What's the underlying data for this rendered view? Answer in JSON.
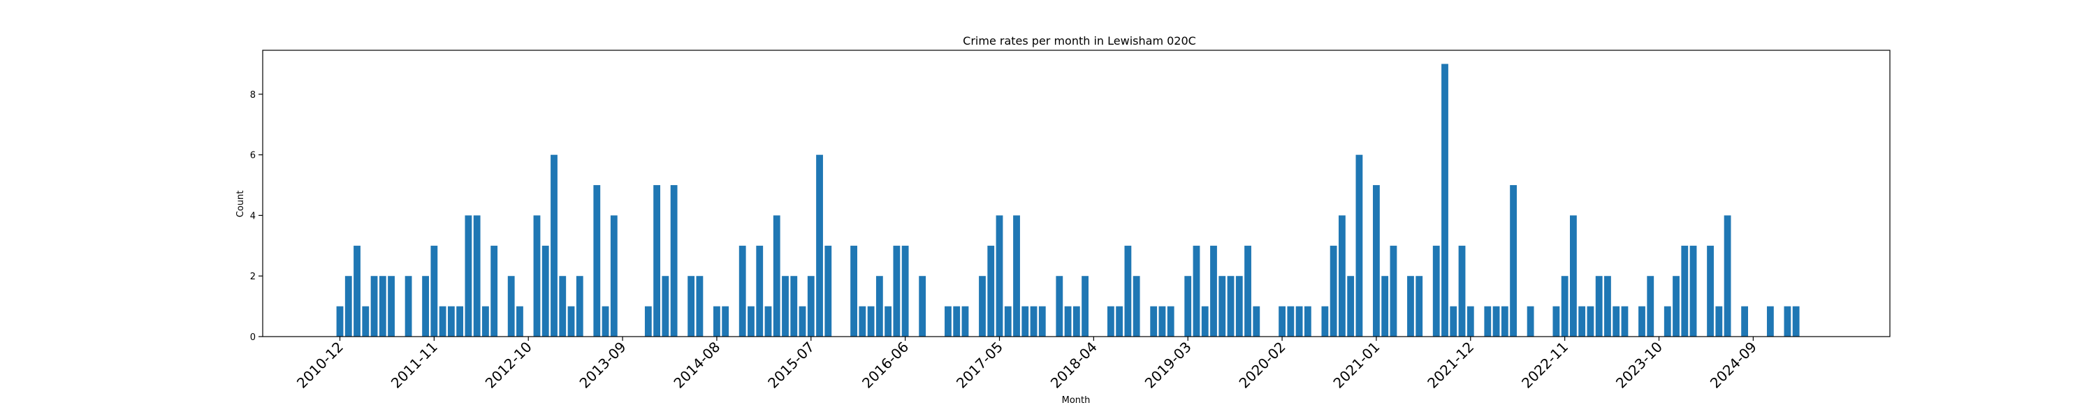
{
  "chart_data": {
    "type": "bar",
    "title": "Crime rates per month in Lewisham 020C",
    "xlabel": "Month",
    "ylabel": "Count",
    "ylim": [
      0,
      9.45
    ],
    "yticks": [
      0,
      2,
      4,
      6,
      8
    ],
    "x_start": "2010-12",
    "x_end": "2024-12",
    "xticks": [
      "2010-12",
      "2011-11",
      "2012-10",
      "2013-09",
      "2014-08",
      "2015-07",
      "2016-06",
      "2017-05",
      "2018-04",
      "2019-03",
      "2020-02",
      "2021-01",
      "2021-12",
      "2022-11",
      "2023-10",
      "2024-09"
    ],
    "grid": false,
    "series": [
      {
        "bars": [
          {
            "x": "2010-12",
            "y": 1
          },
          {
            "x": "2011-01",
            "y": 2
          },
          {
            "x": "2011-02",
            "y": 3
          },
          {
            "x": "2011-03",
            "y": 1
          },
          {
            "x": "2011-04",
            "y": 2
          },
          {
            "x": "2011-05",
            "y": 2
          },
          {
            "x": "2011-06",
            "y": 2
          },
          {
            "x": "2011-08",
            "y": 2
          },
          {
            "x": "2011-10",
            "y": 2
          },
          {
            "x": "2011-11",
            "y": 3
          },
          {
            "x": "2011-12",
            "y": 1
          },
          {
            "x": "2012-01",
            "y": 1
          },
          {
            "x": "2012-02",
            "y": 1
          },
          {
            "x": "2012-03",
            "y": 4
          },
          {
            "x": "2012-04",
            "y": 4
          },
          {
            "x": "2012-05",
            "y": 1
          },
          {
            "x": "2012-06",
            "y": 3
          },
          {
            "x": "2012-08",
            "y": 2
          },
          {
            "x": "2012-09",
            "y": 1
          },
          {
            "x": "2012-11",
            "y": 4
          },
          {
            "x": "2012-12",
            "y": 3
          },
          {
            "x": "2013-01",
            "y": 6
          },
          {
            "x": "2013-02",
            "y": 2
          },
          {
            "x": "2013-03",
            "y": 1
          },
          {
            "x": "2013-04",
            "y": 2
          },
          {
            "x": "2013-06",
            "y": 5
          },
          {
            "x": "2013-07",
            "y": 1
          },
          {
            "x": "2013-08",
            "y": 4
          },
          {
            "x": "2013-12",
            "y": 1
          },
          {
            "x": "2014-01",
            "y": 5
          },
          {
            "x": "2014-02",
            "y": 2
          },
          {
            "x": "2014-03",
            "y": 5
          },
          {
            "x": "2014-05",
            "y": 2
          },
          {
            "x": "2014-06",
            "y": 2
          },
          {
            "x": "2014-08",
            "y": 1
          },
          {
            "x": "2014-09",
            "y": 1
          },
          {
            "x": "2014-11",
            "y": 3
          },
          {
            "x": "2014-12",
            "y": 1
          },
          {
            "x": "2015-01",
            "y": 3
          },
          {
            "x": "2015-02",
            "y": 1
          },
          {
            "x": "2015-03",
            "y": 4
          },
          {
            "x": "2015-04",
            "y": 2
          },
          {
            "x": "2015-05",
            "y": 2
          },
          {
            "x": "2015-06",
            "y": 1
          },
          {
            "x": "2015-07",
            "y": 2
          },
          {
            "x": "2015-08",
            "y": 6
          },
          {
            "x": "2015-09",
            "y": 3
          },
          {
            "x": "2015-12",
            "y": 3
          },
          {
            "x": "2016-01",
            "y": 1
          },
          {
            "x": "2016-02",
            "y": 1
          },
          {
            "x": "2016-03",
            "y": 2
          },
          {
            "x": "2016-04",
            "y": 1
          },
          {
            "x": "2016-05",
            "y": 3
          },
          {
            "x": "2016-06",
            "y": 3
          },
          {
            "x": "2016-08",
            "y": 2
          },
          {
            "x": "2016-11",
            "y": 1
          },
          {
            "x": "2016-12",
            "y": 1
          },
          {
            "x": "2017-01",
            "y": 1
          },
          {
            "x": "2017-03",
            "y": 2
          },
          {
            "x": "2017-04",
            "y": 3
          },
          {
            "x": "2017-05",
            "y": 4
          },
          {
            "x": "2017-06",
            "y": 1
          },
          {
            "x": "2017-07",
            "y": 4
          },
          {
            "x": "2017-08",
            "y": 1
          },
          {
            "x": "2017-09",
            "y": 1
          },
          {
            "x": "2017-10",
            "y": 1
          },
          {
            "x": "2017-12",
            "y": 2
          },
          {
            "x": "2018-01",
            "y": 1
          },
          {
            "x": "2018-02",
            "y": 1
          },
          {
            "x": "2018-03",
            "y": 2
          },
          {
            "x": "2018-06",
            "y": 1
          },
          {
            "x": "2018-07",
            "y": 1
          },
          {
            "x": "2018-08",
            "y": 3
          },
          {
            "x": "2018-09",
            "y": 2
          },
          {
            "x": "2018-11",
            "y": 1
          },
          {
            "x": "2018-12",
            "y": 1
          },
          {
            "x": "2019-01",
            "y": 1
          },
          {
            "x": "2019-03",
            "y": 2
          },
          {
            "x": "2019-04",
            "y": 3
          },
          {
            "x": "2019-05",
            "y": 1
          },
          {
            "x": "2019-06",
            "y": 3
          },
          {
            "x": "2019-07",
            "y": 2
          },
          {
            "x": "2019-08",
            "y": 2
          },
          {
            "x": "2019-09",
            "y": 2
          },
          {
            "x": "2019-10",
            "y": 3
          },
          {
            "x": "2019-11",
            "y": 1
          },
          {
            "x": "2020-02",
            "y": 1
          },
          {
            "x": "2020-03",
            "y": 1
          },
          {
            "x": "2020-04",
            "y": 1
          },
          {
            "x": "2020-05",
            "y": 1
          },
          {
            "x": "2020-07",
            "y": 1
          },
          {
            "x": "2020-08",
            "y": 3
          },
          {
            "x": "2020-09",
            "y": 4
          },
          {
            "x": "2020-10",
            "y": 2
          },
          {
            "x": "2020-11",
            "y": 6
          },
          {
            "x": "2021-01",
            "y": 5
          },
          {
            "x": "2021-02",
            "y": 2
          },
          {
            "x": "2021-03",
            "y": 3
          },
          {
            "x": "2021-05",
            "y": 2
          },
          {
            "x": "2021-06",
            "y": 2
          },
          {
            "x": "2021-08",
            "y": 3
          },
          {
            "x": "2021-09",
            "y": 9
          },
          {
            "x": "2021-10",
            "y": 1
          },
          {
            "x": "2021-11",
            "y": 3
          },
          {
            "x": "2021-12",
            "y": 1
          },
          {
            "x": "2022-02",
            "y": 1
          },
          {
            "x": "2022-03",
            "y": 1
          },
          {
            "x": "2022-04",
            "y": 1
          },
          {
            "x": "2022-05",
            "y": 5
          },
          {
            "x": "2022-07",
            "y": 1
          },
          {
            "x": "2022-10",
            "y": 1
          },
          {
            "x": "2022-11",
            "y": 2
          },
          {
            "x": "2022-12",
            "y": 4
          },
          {
            "x": "2023-01",
            "y": 1
          },
          {
            "x": "2023-02",
            "y": 1
          },
          {
            "x": "2023-03",
            "y": 2
          },
          {
            "x": "2023-04",
            "y": 2
          },
          {
            "x": "2023-05",
            "y": 1
          },
          {
            "x": "2023-06",
            "y": 1
          },
          {
            "x": "2023-08",
            "y": 1
          },
          {
            "x": "2023-09",
            "y": 2
          },
          {
            "x": "2023-11",
            "y": 1
          },
          {
            "x": "2023-12",
            "y": 2
          },
          {
            "x": "2024-01",
            "y": 3
          },
          {
            "x": "2024-02",
            "y": 3
          },
          {
            "x": "2024-04",
            "y": 3
          },
          {
            "x": "2024-05",
            "y": 1
          },
          {
            "x": "2024-06",
            "y": 4
          },
          {
            "x": "2024-08",
            "y": 1
          },
          {
            "x": "2024-11",
            "y": 1
          },
          {
            "x": "2025-01",
            "y": 1
          },
          {
            "x": "2025-02",
            "y": 1
          }
        ]
      }
    ],
    "color": "#1f77b4"
  }
}
